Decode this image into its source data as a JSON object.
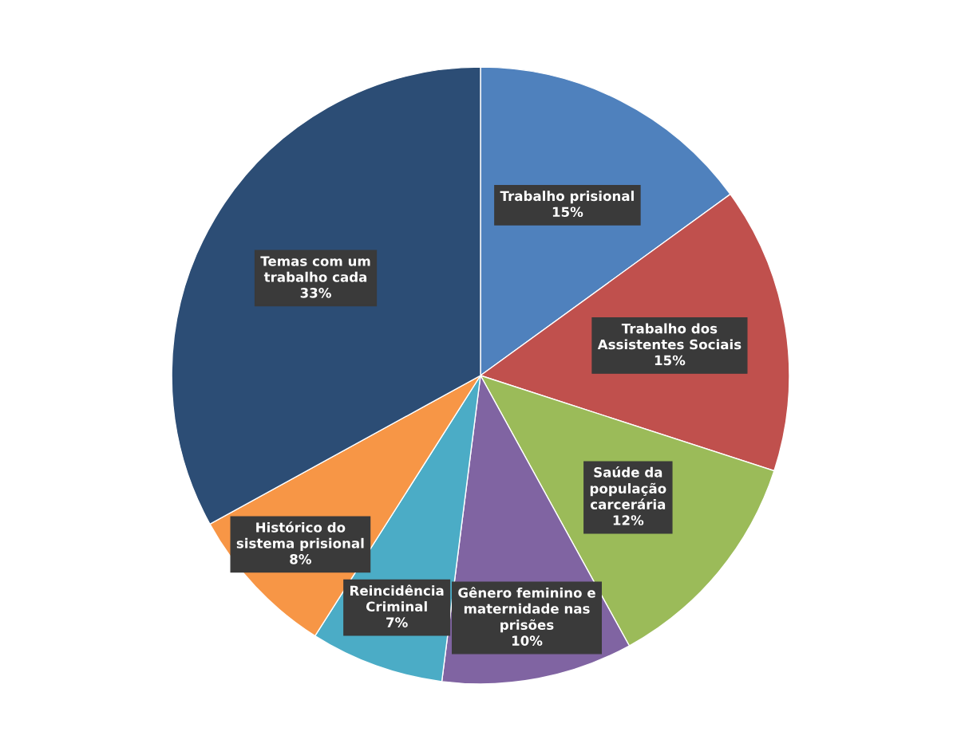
{
  "chart_data": {
    "type": "pie",
    "categories": [
      "Trabalho prisional",
      "Trabalho dos\nAssistentes Sociais",
      "Saúde da\npopulação\ncarcerária",
      "Gênero feminino e\nmaternidade nas\nprisões",
      "Reincidência\nCriminal",
      "Histórico do\nsistema prisional",
      "Temas com um\ntrabalho cada"
    ],
    "values": [
      15,
      15,
      12,
      10,
      7,
      8,
      33
    ],
    "value_labels": [
      "15%",
      "15%",
      "12%",
      "10%",
      "7%",
      "8%",
      "33%"
    ],
    "colors": [
      "#4f81bd",
      "#c0504d",
      "#9bbb59",
      "#8064a2",
      "#4bacc6",
      "#f79646",
      "#2c4d75"
    ],
    "legend": false
  }
}
